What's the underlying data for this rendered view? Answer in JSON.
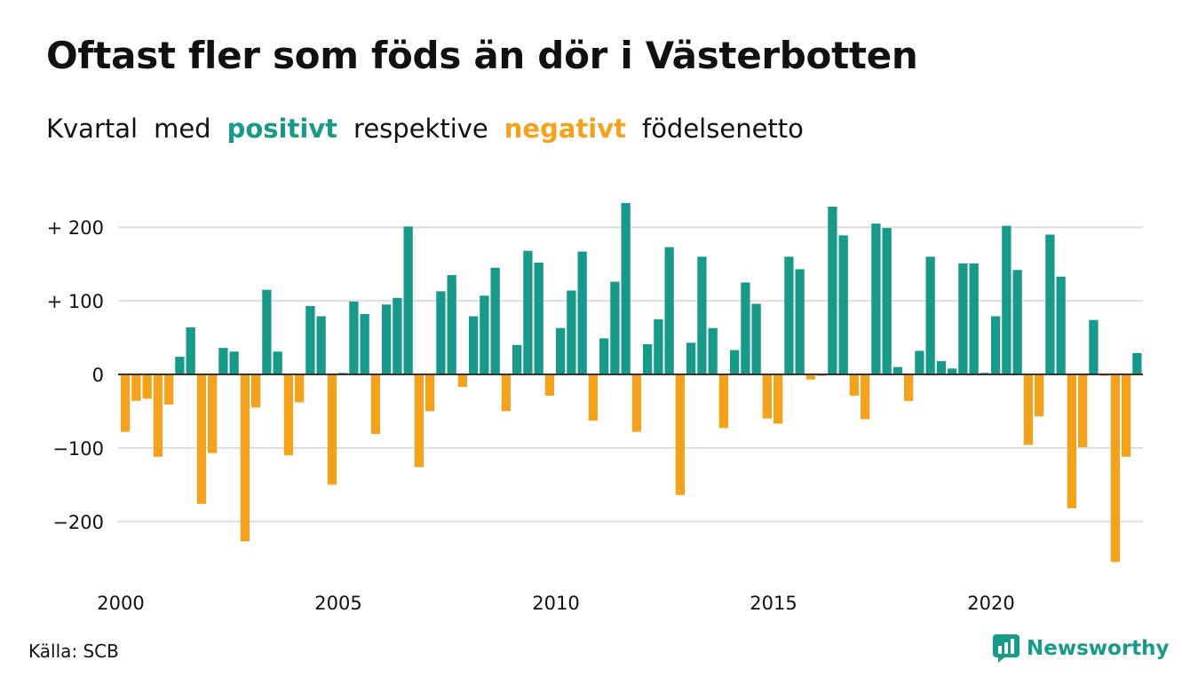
{
  "title": "Oftast fler som föds än dör i Västerbotten",
  "subtitle": {
    "part1": "Kvartal",
    "part2": "med",
    "positive_word": "positivt",
    "part3": "respektive",
    "negative_word": "negativt",
    "part4": "födelsenetto"
  },
  "source": "Källa: SCB",
  "brand": "Newsworthy",
  "colors": {
    "positive": "#179a8a",
    "negative": "#f4a11c",
    "grid": "#dddddd",
    "zero_line": "#333333",
    "text": "#111111"
  },
  "chart_data": {
    "type": "bar",
    "x_start_year": 2000,
    "periods_per_year": 4,
    "values": [
      -78,
      -36,
      -33,
      -112,
      -41,
      24,
      64,
      -176,
      -107,
      36,
      31,
      -227,
      -45,
      115,
      31,
      -110,
      -38,
      93,
      79,
      -150,
      2,
      99,
      82,
      -81,
      95,
      104,
      201,
      -126,
      -50,
      113,
      135,
      -17,
      79,
      107,
      145,
      -50,
      40,
      168,
      152,
      -29,
      63,
      114,
      167,
      -63,
      49,
      126,
      233,
      -78,
      41,
      75,
      173,
      -164,
      43,
      160,
      63,
      -73,
      33,
      125,
      96,
      -60,
      -67,
      160,
      143,
      -7,
      -2,
      228,
      189,
      -29,
      -61,
      205,
      199,
      10,
      -36,
      32,
      160,
      18,
      8,
      151,
      151,
      2,
      79,
      202,
      142,
      -96,
      -57,
      190,
      133,
      -182,
      -99,
      74,
      -2,
      -255,
      -112,
      29
    ],
    "x_ticks": [
      {
        "year": 2000,
        "label": "2000"
      },
      {
        "year": 2005,
        "label": "2005"
      },
      {
        "year": 2010,
        "label": "2010"
      },
      {
        "year": 2015,
        "label": "2015"
      },
      {
        "year": 2020,
        "label": "2020"
      }
    ],
    "y_ticks": [
      {
        "value": 200,
        "label": "+ 200"
      },
      {
        "value": 100,
        "label": "+ 100"
      },
      {
        "value": 0,
        "label": "0"
      },
      {
        "value": -100,
        "label": "−100"
      },
      {
        "value": -200,
        "label": "−200"
      }
    ],
    "ylim": [
      -260,
      240
    ],
    "grid": true,
    "legend": "none"
  }
}
